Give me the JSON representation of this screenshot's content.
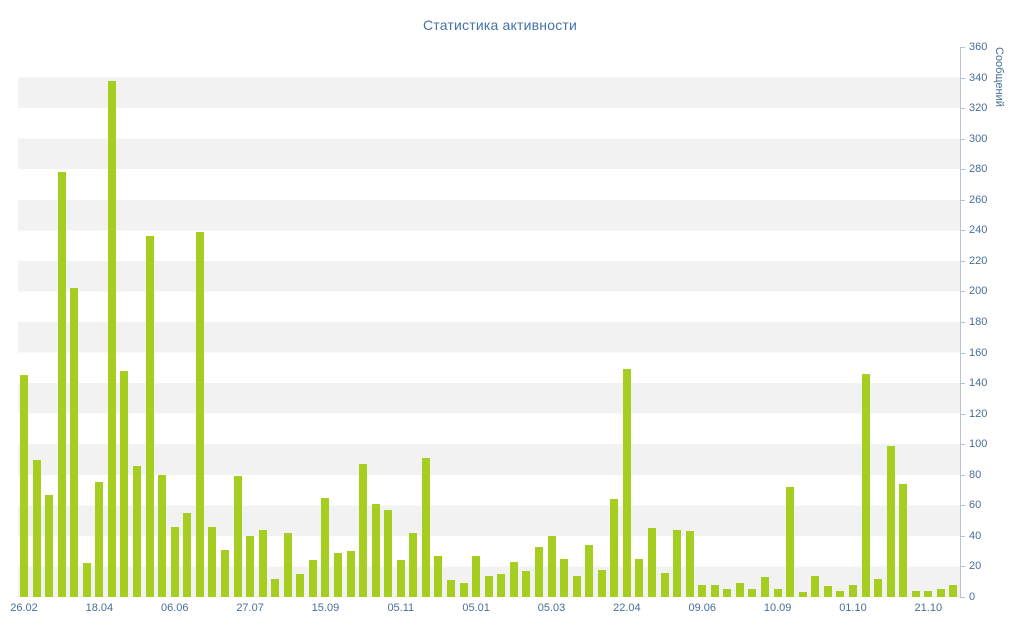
{
  "page": {
    "background_color": "#ffffff"
  },
  "chart_data": {
    "type": "bar",
    "title": "Статистика активности",
    "title_color": "#4572a7",
    "xlabel": "",
    "ylabel": "Сообщений",
    "ylim": [
      0,
      360
    ],
    "ytick_step": 20,
    "yticks_side": "right",
    "legend": "none",
    "grid": "alternating horizontal bands",
    "stripe_colors": [
      "#ffffff",
      "#f2f2f2"
    ],
    "bar_color": "#a5ce20",
    "axis_line_color": "#b6c3d4",
    "axis_label_color": "#4a6e96",
    "x_tick_labels": [
      "26.02",
      "18.04",
      "06.06",
      "27.07",
      "15.09",
      "05.11",
      "05.01",
      "05.03",
      "22.04",
      "09.06",
      "10.09",
      "01.10",
      "21.10"
    ],
    "x_tick_every_n_bars": 6,
    "values": [
      145,
      90,
      67,
      278,
      202,
      22,
      75,
      338,
      148,
      86,
      236,
      80,
      46,
      55,
      239,
      46,
      31,
      79,
      40,
      44,
      12,
      42,
      15,
      24,
      65,
      29,
      30,
      87,
      61,
      57,
      24,
      42,
      91,
      27,
      11,
      9,
      27,
      14,
      15,
      23,
      17,
      33,
      40,
      25,
      14,
      34,
      18,
      64,
      149,
      25,
      45,
      16,
      44,
      43,
      8,
      8,
      5,
      9,
      5,
      13,
      5,
      72,
      3,
      14,
      7,
      4,
      8,
      146,
      12,
      99,
      74,
      4,
      4,
      5,
      8
    ]
  }
}
